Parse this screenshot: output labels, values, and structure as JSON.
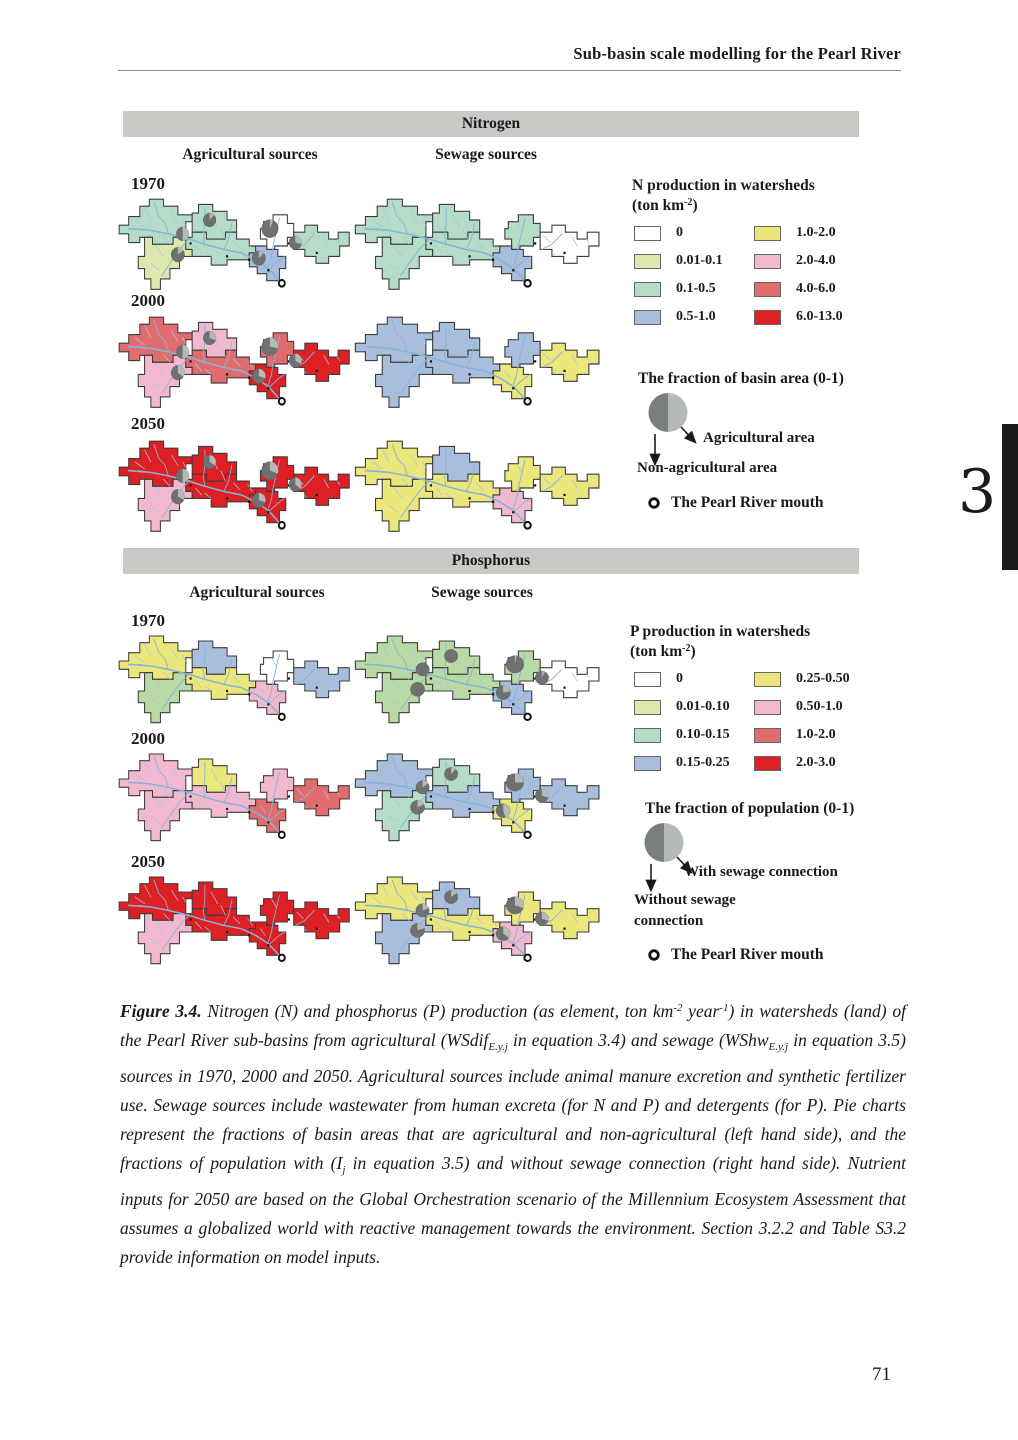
{
  "page": {
    "header": "Sub-basin scale modelling for the Pearl River",
    "page_number": "71",
    "chapter_tab": "3"
  },
  "palette": {
    "white": "#ffffff",
    "pale_yellow_green": "#dde8ac",
    "pale_green": "#b5dcc6",
    "light_green": "#b9d9a5",
    "pale_blue": "#a9bedd",
    "yellow": "#ebe77c",
    "pink": "#f1b8d0",
    "salmon": "#e16c6e",
    "red": "#de1f24",
    "pie_dark": "#6d716f",
    "pie_light": "#b6bab7",
    "river": "#85b4d8",
    "river_twig": "#a4c6e2",
    "outline": "#3c3c3c",
    "bar_gray": "#c9c9c6"
  },
  "nitrogen": {
    "title": "Nitrogen",
    "col_left": "Agricultural sources",
    "col_right": "Sewage sources",
    "legend": {
      "title": "N production in watersheds",
      "unit_pre": "(ton km",
      "unit_sup": "-2",
      "unit_post": ")",
      "left": [
        {
          "label": "0",
          "color": "white"
        },
        {
          "label": "0.01-0.1",
          "color": "pale_yellow_green"
        },
        {
          "label": "0.1-0.5",
          "color": "pale_green"
        },
        {
          "label": "0.5-1.0",
          "color": "pale_blue"
        }
      ],
      "right": [
        {
          "label": "1.0-2.0",
          "color": "yellow"
        },
        {
          "label": "2.0-4.0",
          "color": "pink"
        },
        {
          "label": "4.0-6.0",
          "color": "salmon"
        },
        {
          "label": "6.0-13.0",
          "color": "red"
        }
      ]
    },
    "fraction": {
      "title": "The fraction of basin area (0-1)",
      "right_label": "Agricultural area",
      "down_label_1": "Non-agricultural area",
      "down_label_2": ""
    },
    "mouth_label": "The Pearl River mouth",
    "rows": [
      {
        "year": "1970",
        "left": "n1970a",
        "right": "n1970s"
      },
      {
        "year": "2000",
        "left": "n2000a",
        "right": "n2000s"
      },
      {
        "year": "2050",
        "left": "n2050a",
        "right": "n2050s"
      }
    ]
  },
  "phosphorus": {
    "title": "Phosphorus",
    "col_left": "Agricultural sources",
    "col_right": "Sewage sources",
    "legend": {
      "title": "P production in watersheds",
      "unit_pre": "(ton km",
      "unit_sup": "-2",
      "unit_post": ")",
      "left": [
        {
          "label": "0",
          "color": "white"
        },
        {
          "label": "0.01-0.10",
          "color": "pale_yellow_green"
        },
        {
          "label": "0.10-0.15",
          "color": "pale_green"
        },
        {
          "label": "0.15-0.25",
          "color": "pale_blue"
        }
      ],
      "right": [
        {
          "label": "0.25-0.50",
          "color": "yellow"
        },
        {
          "label": "0.50-1.0",
          "color": "pink"
        },
        {
          "label": "1.0-2.0",
          "color": "salmon"
        },
        {
          "label": "2.0-3.0",
          "color": "red"
        }
      ]
    },
    "fraction": {
      "title": "The fraction of population (0-1)",
      "right_label": "With sewage connection",
      "down_label_1": "Without sewage",
      "down_label_2": "connection"
    },
    "mouth_label": "The Pearl River mouth",
    "rows": [
      {
        "year": "1970",
        "left": "p1970a",
        "right": "p1970s"
      },
      {
        "year": "2000",
        "left": "p2000a",
        "right": "p2000s"
      },
      {
        "year": "2050",
        "left": "p2050a",
        "right": "p2050s"
      }
    ]
  },
  "maps": {
    "n1970a": {
      "regions": [
        "pale_green",
        "pale_yellow_green",
        "pale_green",
        "pale_green",
        "white",
        "pale_blue",
        "pale_green"
      ],
      "pies": [
        0.5,
        0.12,
        0.15,
        0.06,
        0.13,
        0.28
      ]
    },
    "n1970s": {
      "regions": [
        "pale_green",
        "pale_green",
        "pale_green",
        "pale_green",
        "pale_green",
        "pale_blue",
        "white"
      ],
      "pies": null
    },
    "n2000a": {
      "regions": [
        "salmon",
        "pink",
        "pink",
        "salmon",
        "salmon",
        "red",
        "red"
      ],
      "pies": [
        0.5,
        0.3,
        0.35,
        0.28,
        0.3,
        0.33
      ]
    },
    "n2000s": {
      "regions": [
        "pale_blue",
        "pale_blue",
        "pale_blue",
        "pale_blue",
        "pale_blue",
        "yellow",
        "yellow"
      ],
      "pies": null
    },
    "n2050a": {
      "regions": [
        "red",
        "pink",
        "red",
        "red",
        "red",
        "red",
        "red"
      ],
      "pies": [
        0.5,
        0.33,
        0.32,
        0.3,
        0.3,
        0.35
      ]
    },
    "n2050s": {
      "regions": [
        "yellow",
        "yellow",
        "pale_blue",
        "yellow",
        "yellow",
        "pink",
        "yellow"
      ],
      "pies": null
    },
    "p1970a": {
      "regions": [
        "yellow",
        "light_green",
        "pale_blue",
        "yellow",
        "white",
        "pink",
        "pale_blue"
      ],
      "pies": null
    },
    "p1970s": {
      "regions": [
        "light_green",
        "light_green",
        "light_green",
        "light_green",
        "light_green",
        "pale_blue",
        "white"
      ],
      "pies": [
        0,
        0,
        0,
        0.03,
        0.22,
        0.08
      ]
    },
    "p2000a": {
      "regions": [
        "pink",
        "pink",
        "yellow",
        "pink",
        "pink",
        "salmon",
        "salmon"
      ],
      "pies": null
    },
    "p2000s": {
      "regions": [
        "pale_blue",
        "pale_green",
        "pale_green",
        "pale_blue",
        "pale_blue",
        "yellow",
        "pale_blue"
      ],
      "pies": [
        0.15,
        0.12,
        0.18,
        0.25,
        0.45,
        0.3
      ]
    },
    "p2050a": {
      "regions": [
        "red",
        "pink",
        "red",
        "red",
        "red",
        "red",
        "red"
      ],
      "pies": null
    },
    "p2050s": {
      "regions": [
        "yellow",
        "pale_blue",
        "pale_blue",
        "yellow",
        "yellow",
        "pink",
        "yellow"
      ],
      "pies": [
        0.2,
        0.15,
        0.2,
        0.3,
        0.35,
        0.3
      ]
    }
  },
  "caption": {
    "segments": [
      {
        "t": "Figure 3.4.",
        "s": "b"
      },
      {
        "t": " Nitrogen (N) and phosphorus (P) production (as element, ton km"
      },
      {
        "t": "-2",
        "s": "sup"
      },
      {
        "t": " year"
      },
      {
        "t": "-1",
        "s": "sup"
      },
      {
        "t": ") in watersheds (land) of the Pearl River sub-basins from agricultural (WSdif"
      },
      {
        "t": "E.y.j",
        "s": "sub"
      },
      {
        "t": " in equation 3.4) and sewage (WShw"
      },
      {
        "t": "E.y.j",
        "s": "sub"
      },
      {
        "t": " in equation 3.5) sources in 1970, 2000 and 2050. Agricultural sources include animal manure excretion and synthetic fertilizer use. Sewage sources include wastewater from human excreta (for N and P) and detergents (for P). Pie charts represent the fractions of basin areas that are agricultural and non-agricultural (left hand side), and the fractions of population with (I"
      },
      {
        "t": "j",
        "s": "sub"
      },
      {
        "t": " in equation 3.5) and without sewage connection (right hand side). Nutrient inputs for 2050 are based on the Global Orchestration scenario of the Millennium Ecosystem Assessment that assumes a globalized world with reactive management towards the environment. Section 3.2.2 and Table S3.2 provide information on model inputs."
      }
    ]
  }
}
